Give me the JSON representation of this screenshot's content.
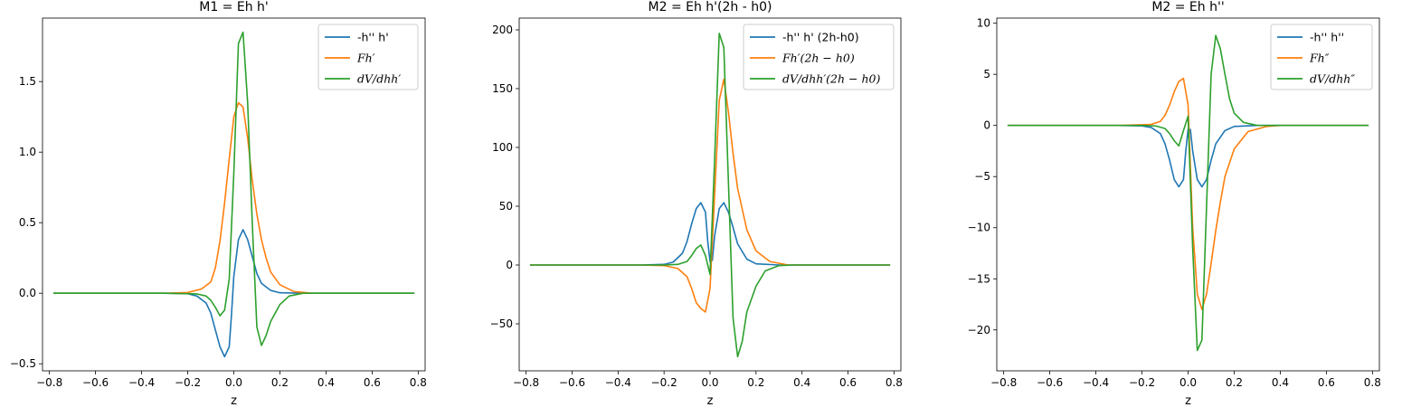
{
  "figure": {
    "background": "#ffffff",
    "series_colors": [
      "#1f77b4",
      "#ff7f0e",
      "#2ca02c"
    ]
  },
  "chart_data": [
    {
      "type": "line",
      "title": "M1 = Eh h'",
      "xlabel": "z",
      "ylabel": "",
      "xlim": [
        -0.83,
        0.83
      ],
      "ylim": [
        -0.55,
        1.95
      ],
      "xticks": [
        -0.8,
        -0.6,
        -0.4,
        -0.2,
        0.0,
        0.2,
        0.4,
        0.6,
        0.8
      ],
      "xtick_labels": [
        "−0.8",
        "−0.6",
        "−0.4",
        "−0.2",
        "0.0",
        "0.2",
        "0.4",
        "0.6",
        "0.8"
      ],
      "yticks": [
        -0.5,
        0.0,
        0.5,
        1.0,
        1.5
      ],
      "ytick_labels": [
        "−0.5",
        "0.0",
        "0.5",
        "1.0",
        "1.5"
      ],
      "legend_position": "upper-right",
      "series": [
        {
          "name": "-h'' h'",
          "color": "#1f77b4",
          "points": [
            [
              -0.78,
              0.0
            ],
            [
              -0.3,
              0.0
            ],
            [
              -0.2,
              -0.003
            ],
            [
              -0.16,
              -0.02
            ],
            [
              -0.12,
              -0.07
            ],
            [
              -0.1,
              -0.14
            ],
            [
              -0.08,
              -0.26
            ],
            [
              -0.06,
              -0.38
            ],
            [
              -0.04,
              -0.45
            ],
            [
              -0.02,
              -0.38
            ],
            [
              -0.01,
              -0.15
            ],
            [
              0.0,
              0.12
            ],
            [
              0.02,
              0.38
            ],
            [
              0.04,
              0.45
            ],
            [
              0.06,
              0.38
            ],
            [
              0.08,
              0.26
            ],
            [
              0.1,
              0.14
            ],
            [
              0.12,
              0.07
            ],
            [
              0.16,
              0.02
            ],
            [
              0.2,
              0.003
            ],
            [
              0.3,
              0.0
            ],
            [
              0.78,
              0.0
            ]
          ]
        },
        {
          "name": "Fh′",
          "color": "#ff7f0e",
          "points": [
            [
              -0.78,
              0.0
            ],
            [
              -0.3,
              0.0
            ],
            [
              -0.2,
              0.005
            ],
            [
              -0.14,
              0.03
            ],
            [
              -0.1,
              0.08
            ],
            [
              -0.08,
              0.18
            ],
            [
              -0.06,
              0.37
            ],
            [
              -0.04,
              0.64
            ],
            [
              -0.02,
              0.95
            ],
            [
              0.0,
              1.25
            ],
            [
              0.02,
              1.35
            ],
            [
              0.04,
              1.32
            ],
            [
              0.06,
              1.1
            ],
            [
              0.08,
              0.8
            ],
            [
              0.1,
              0.56
            ],
            [
              0.12,
              0.38
            ],
            [
              0.14,
              0.25
            ],
            [
              0.16,
              0.15
            ],
            [
              0.2,
              0.06
            ],
            [
              0.26,
              0.012
            ],
            [
              0.34,
              0.0
            ],
            [
              0.78,
              0.0
            ]
          ]
        },
        {
          "name": "dV/dhh′",
          "color": "#2ca02c",
          "points": [
            [
              -0.78,
              0.0
            ],
            [
              -0.3,
              0.0
            ],
            [
              -0.16,
              -0.005
            ],
            [
              -0.12,
              -0.02
            ],
            [
              -0.1,
              -0.05
            ],
            [
              -0.08,
              -0.1
            ],
            [
              -0.06,
              -0.16
            ],
            [
              -0.04,
              -0.12
            ],
            [
              -0.02,
              0.1
            ],
            [
              0.0,
              0.85
            ],
            [
              0.02,
              1.77
            ],
            [
              0.04,
              1.85
            ],
            [
              0.06,
              1.35
            ],
            [
              0.08,
              0.5
            ],
            [
              0.1,
              -0.24
            ],
            [
              0.12,
              -0.37
            ],
            [
              0.14,
              -0.3
            ],
            [
              0.16,
              -0.2
            ],
            [
              0.2,
              -0.08
            ],
            [
              0.24,
              -0.02
            ],
            [
              0.3,
              0.0
            ],
            [
              0.78,
              0.0
            ]
          ]
        }
      ]
    },
    {
      "type": "line",
      "title": "M2 = Eh h'(2h - h0)",
      "xlabel": "z",
      "ylabel": "",
      "xlim": [
        -0.83,
        0.83
      ],
      "ylim": [
        -90,
        210
      ],
      "xticks": [
        -0.8,
        -0.6,
        -0.4,
        -0.2,
        0.0,
        0.2,
        0.4,
        0.6,
        0.8
      ],
      "xtick_labels": [
        "−0.8",
        "−0.6",
        "−0.4",
        "−0.2",
        "0.0",
        "0.2",
        "0.4",
        "0.6",
        "0.8"
      ],
      "yticks": [
        -50,
        0,
        50,
        100,
        150,
        200
      ],
      "ytick_labels": [
        "−50",
        "0",
        "50",
        "100",
        "150",
        "200"
      ],
      "legend_position": "upper-right",
      "series": [
        {
          "name": "-h'' h' (2h-h0)",
          "color": "#1f77b4",
          "points": [
            [
              -0.78,
              0.0
            ],
            [
              -0.3,
              0.0
            ],
            [
              -0.2,
              0.5
            ],
            [
              -0.16,
              2.5
            ],
            [
              -0.12,
              10
            ],
            [
              -0.1,
              20
            ],
            [
              -0.08,
              35
            ],
            [
              -0.06,
              48
            ],
            [
              -0.04,
              53
            ],
            [
              -0.02,
              45
            ],
            [
              -0.01,
              20
            ],
            [
              0.0,
              3
            ],
            [
              0.01,
              4
            ],
            [
              0.02,
              25
            ],
            [
              0.04,
              48
            ],
            [
              0.06,
              53
            ],
            [
              0.08,
              45
            ],
            [
              0.1,
              32
            ],
            [
              0.12,
              18
            ],
            [
              0.16,
              5
            ],
            [
              0.2,
              1
            ],
            [
              0.3,
              0.0
            ],
            [
              0.78,
              0.0
            ]
          ]
        },
        {
          "name": "Fh′(2h − h0)",
          "color": "#ff7f0e",
          "points": [
            [
              -0.78,
              0.0
            ],
            [
              -0.3,
              0.0
            ],
            [
              -0.2,
              -0.5
            ],
            [
              -0.14,
              -3
            ],
            [
              -0.1,
              -10
            ],
            [
              -0.08,
              -20
            ],
            [
              -0.06,
              -32
            ],
            [
              -0.04,
              -37
            ],
            [
              -0.02,
              -40
            ],
            [
              0.0,
              -20
            ],
            [
              0.02,
              60
            ],
            [
              0.04,
              140
            ],
            [
              0.06,
              158
            ],
            [
              0.08,
              130
            ],
            [
              0.1,
              95
            ],
            [
              0.12,
              65
            ],
            [
              0.16,
              30
            ],
            [
              0.2,
              12
            ],
            [
              0.26,
              3
            ],
            [
              0.34,
              0.0
            ],
            [
              0.78,
              0.0
            ]
          ]
        },
        {
          "name": "dV/dhh′(2h − h0)",
          "color": "#2ca02c",
          "points": [
            [
              -0.78,
              0.0
            ],
            [
              -0.2,
              0.0
            ],
            [
              -0.14,
              0.5
            ],
            [
              -0.1,
              3
            ],
            [
              -0.08,
              8
            ],
            [
              -0.06,
              14
            ],
            [
              -0.04,
              17
            ],
            [
              -0.02,
              8
            ],
            [
              0.0,
              -8
            ],
            [
              0.02,
              90
            ],
            [
              0.04,
              197
            ],
            [
              0.06,
              185
            ],
            [
              0.08,
              70
            ],
            [
              0.1,
              -45
            ],
            [
              0.12,
              -78
            ],
            [
              0.14,
              -65
            ],
            [
              0.16,
              -40
            ],
            [
              0.2,
              -18
            ],
            [
              0.24,
              -5
            ],
            [
              0.3,
              -0.5
            ],
            [
              0.36,
              0.0
            ],
            [
              0.78,
              0.0
            ]
          ]
        }
      ]
    },
    {
      "type": "line",
      "title": "M2 = Eh h''",
      "xlabel": "z",
      "ylabel": "",
      "xlim": [
        -0.83,
        0.83
      ],
      "ylim": [
        -24,
        10.5
      ],
      "xticks": [
        -0.8,
        -0.6,
        -0.4,
        -0.2,
        0.0,
        0.2,
        0.4,
        0.6,
        0.8
      ],
      "xtick_labels": [
        "−0.8",
        "−0.6",
        "−0.4",
        "−0.2",
        "0.0",
        "0.2",
        "0.4",
        "0.6",
        "0.8"
      ],
      "yticks": [
        -20,
        -15,
        -10,
        -5,
        0,
        5,
        10
      ],
      "ytick_labels": [
        "−20",
        "−15",
        "−10",
        "−5",
        "0",
        "5",
        "10"
      ],
      "legend_position": "upper-right",
      "series": [
        {
          "name": "-h'' h''",
          "color": "#1f77b4",
          "points": [
            [
              -0.78,
              0.0
            ],
            [
              -0.3,
              0.0
            ],
            [
              -0.2,
              -0.05
            ],
            [
              -0.16,
              -0.2
            ],
            [
              -0.12,
              -0.8
            ],
            [
              -0.1,
              -1.8
            ],
            [
              -0.08,
              -3.4
            ],
            [
              -0.06,
              -5.3
            ],
            [
              -0.04,
              -6.0
            ],
            [
              -0.02,
              -5.3
            ],
            [
              -0.01,
              -2.5
            ],
            [
              0.0,
              -0.4
            ],
            [
              0.01,
              -0.4
            ],
            [
              0.02,
              -2.5
            ],
            [
              0.04,
              -5.3
            ],
            [
              0.06,
              -6.0
            ],
            [
              0.08,
              -5.3
            ],
            [
              0.1,
              -3.4
            ],
            [
              0.12,
              -1.8
            ],
            [
              0.16,
              -0.5
            ],
            [
              0.2,
              -0.1
            ],
            [
              0.3,
              0.0
            ],
            [
              0.78,
              0.0
            ]
          ]
        },
        {
          "name": "Fh″",
          "color": "#ff7f0e",
          "points": [
            [
              -0.78,
              0.0
            ],
            [
              -0.3,
              0.0
            ],
            [
              -0.16,
              0.1
            ],
            [
              -0.12,
              0.4
            ],
            [
              -0.1,
              1.0
            ],
            [
              -0.08,
              2.0
            ],
            [
              -0.06,
              3.3
            ],
            [
              -0.04,
              4.3
            ],
            [
              -0.02,
              4.6
            ],
            [
              0.0,
              2.0
            ],
            [
              0.02,
              -10
            ],
            [
              0.04,
              -16.5
            ],
            [
              0.06,
              -18.0
            ],
            [
              0.08,
              -16.5
            ],
            [
              0.1,
              -13.5
            ],
            [
              0.12,
              -10.3
            ],
            [
              0.14,
              -7.5
            ],
            [
              0.16,
              -5.0
            ],
            [
              0.2,
              -2.3
            ],
            [
              0.26,
              -0.6
            ],
            [
              0.34,
              -0.1
            ],
            [
              0.4,
              0.0
            ],
            [
              0.78,
              0.0
            ]
          ]
        },
        {
          "name": "dV/dhh″",
          "color": "#2ca02c",
          "points": [
            [
              -0.78,
              0.0
            ],
            [
              -0.2,
              0.0
            ],
            [
              -0.14,
              -0.05
            ],
            [
              -0.1,
              -0.3
            ],
            [
              -0.08,
              -0.8
            ],
            [
              -0.06,
              -1.5
            ],
            [
              -0.04,
              -2.0
            ],
            [
              -0.02,
              -0.5
            ],
            [
              0.0,
              0.9
            ],
            [
              0.02,
              -12
            ],
            [
              0.04,
              -22
            ],
            [
              0.06,
              -21
            ],
            [
              0.08,
              -8
            ],
            [
              0.1,
              5
            ],
            [
              0.12,
              8.8
            ],
            [
              0.14,
              7.5
            ],
            [
              0.16,
              5.0
            ],
            [
              0.18,
              2.6
            ],
            [
              0.2,
              1.2
            ],
            [
              0.24,
              0.3
            ],
            [
              0.3,
              0.0
            ],
            [
              0.78,
              0.0
            ]
          ]
        }
      ]
    }
  ]
}
